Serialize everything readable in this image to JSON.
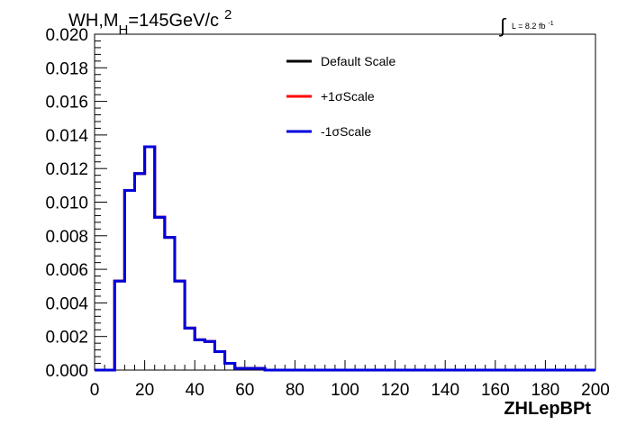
{
  "chart_data": {
    "type": "line",
    "style": "step-histogram",
    "title_parts": {
      "main": "WH,M",
      "sub": "H",
      "rest": "=145GeV/c",
      "sup": "2"
    },
    "lumi": {
      "integral": "∫",
      "text": "L = 8.2 fb",
      "sup": "-1"
    },
    "xlabel": "ZHLepBPt",
    "ylabel": "",
    "xlim": [
      0,
      200
    ],
    "ylim": [
      0,
      0.02
    ],
    "x_ticks": [
      "0",
      "20",
      "40",
      "60",
      "80",
      "100",
      "120",
      "140",
      "160",
      "180",
      "200"
    ],
    "y_ticks": [
      "0.000",
      "0.002",
      "0.004",
      "0.006",
      "0.008",
      "0.010",
      "0.012",
      "0.014",
      "0.016",
      "0.018",
      "0.020"
    ],
    "legend_placement": "top-center",
    "grid": false,
    "bin_edges": [
      0,
      4,
      8,
      12,
      16,
      20,
      24,
      28,
      32,
      36,
      40,
      44,
      48,
      52,
      56,
      60,
      64,
      68,
      72,
      76,
      80,
      84,
      88,
      92,
      96,
      100,
      104,
      108,
      112,
      116,
      120,
      124,
      128,
      132,
      136,
      140,
      144,
      148,
      152,
      156,
      160,
      164,
      168,
      172,
      176,
      180,
      184,
      188,
      192,
      196,
      200
    ],
    "series": [
      {
        "name": "Default Scale",
        "color": "#000000",
        "values": [
          0,
          0,
          0.0053,
          0.0107,
          0.0117,
          0.0133,
          0.0091,
          0.0079,
          0.0053,
          0.0025,
          0.0018,
          0.0017,
          0.0011,
          0.0004,
          0.0001,
          0.0001,
          0.0001,
          0,
          0,
          0,
          0,
          0,
          0,
          0,
          0,
          0,
          0,
          0,
          0,
          0,
          0,
          0,
          0,
          0,
          0,
          0,
          0,
          0,
          0,
          0,
          0,
          0,
          0,
          0,
          0,
          0,
          0,
          0,
          0,
          0
        ]
      },
      {
        "name": "+1σScale",
        "color": "#ff0000",
        "values": [
          0,
          0,
          0.0053,
          0.0107,
          0.0117,
          0.0133,
          0.0091,
          0.0079,
          0.0053,
          0.0025,
          0.0018,
          0.0017,
          0.0011,
          0.0004,
          0.0001,
          0.0001,
          0.0001,
          0,
          0,
          0,
          0,
          0,
          0,
          0,
          0,
          0,
          0,
          0,
          0,
          0,
          0,
          0,
          0,
          0,
          0,
          0,
          0,
          0,
          0,
          0,
          0,
          0,
          0,
          0,
          0,
          0,
          0,
          0,
          0,
          0
        ]
      },
      {
        "name": "-1σScale",
        "color": "#0000dd",
        "values": [
          0,
          0,
          0.0053,
          0.0107,
          0.0117,
          0.0133,
          0.0091,
          0.0079,
          0.0053,
          0.0025,
          0.0018,
          0.0017,
          0.0011,
          0.0004,
          0.0001,
          0.0001,
          0.0001,
          0,
          0,
          0,
          0,
          0,
          0,
          0,
          0,
          0,
          0,
          0,
          0,
          0,
          0,
          0,
          0,
          0,
          0,
          0,
          0,
          0,
          0,
          0,
          0,
          0,
          0,
          0,
          0,
          0,
          0,
          0,
          0,
          0
        ]
      }
    ]
  }
}
